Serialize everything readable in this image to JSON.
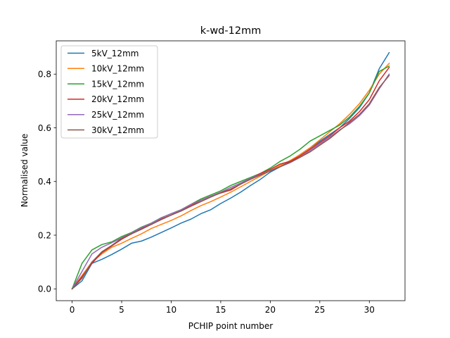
{
  "chart_data": {
    "type": "line",
    "title": "k-wd-12mm",
    "xlabel": "PCHIP point number",
    "ylabel": "Normalised value",
    "xlim": [
      -1.6,
      33.6
    ],
    "ylim": [
      -0.044,
      0.924
    ],
    "xticks": [
      0,
      5,
      10,
      15,
      20,
      25,
      30
    ],
    "yticks": [
      0.0,
      0.2,
      0.4,
      0.6,
      0.8
    ],
    "ytick_labels": [
      "0.0",
      "0.2",
      "0.4",
      "0.6",
      "0.8"
    ],
    "grid": false,
    "legend_position": "upper-left",
    "x": [
      0,
      1,
      2,
      3,
      4,
      5,
      6,
      7,
      8,
      9,
      10,
      11,
      12,
      13,
      14,
      15,
      16,
      17,
      18,
      19,
      20,
      21,
      22,
      23,
      24,
      25,
      26,
      27,
      28,
      29,
      30,
      31,
      32
    ],
    "series": [
      {
        "name": "5kV_12mm",
        "color": "#1f77b4",
        "values": [
          0.0,
          0.03,
          0.095,
          0.11,
          0.128,
          0.148,
          0.17,
          0.178,
          0.193,
          0.21,
          0.227,
          0.245,
          0.26,
          0.28,
          0.295,
          0.318,
          0.338,
          0.36,
          0.385,
          0.408,
          0.435,
          0.455,
          0.475,
          0.5,
          0.525,
          0.55,
          0.575,
          0.6,
          0.635,
          0.675,
          0.73,
          0.82,
          0.88
        ]
      },
      {
        "name": "10kV_12mm",
        "color": "#ff7f0e",
        "values": [
          0.0,
          0.05,
          0.1,
          0.13,
          0.155,
          0.17,
          0.188,
          0.205,
          0.225,
          0.24,
          0.255,
          0.272,
          0.292,
          0.31,
          0.325,
          0.342,
          0.36,
          0.38,
          0.4,
          0.42,
          0.44,
          0.46,
          0.478,
          0.5,
          0.525,
          0.555,
          0.585,
          0.615,
          0.65,
          0.69,
          0.74,
          0.8,
          0.84
        ]
      },
      {
        "name": "15kV_12mm",
        "color": "#2ca02c",
        "values": [
          0.0,
          0.095,
          0.145,
          0.165,
          0.175,
          0.195,
          0.21,
          0.23,
          0.245,
          0.265,
          0.28,
          0.295,
          0.315,
          0.335,
          0.35,
          0.365,
          0.385,
          0.4,
          0.415,
          0.43,
          0.45,
          0.475,
          0.495,
          0.52,
          0.55,
          0.57,
          0.59,
          0.61,
          0.64,
          0.68,
          0.73,
          0.81,
          0.83
        ]
      },
      {
        "name": "20kV_12mm",
        "color": "#d62728",
        "values": [
          0.0,
          0.045,
          0.095,
          0.135,
          0.16,
          0.185,
          0.205,
          0.225,
          0.24,
          0.26,
          0.275,
          0.292,
          0.31,
          0.33,
          0.345,
          0.357,
          0.368,
          0.39,
          0.41,
          0.43,
          0.445,
          0.465,
          0.475,
          0.495,
          0.52,
          0.545,
          0.57,
          0.6,
          0.625,
          0.66,
          0.705,
          0.775,
          0.825
        ]
      },
      {
        "name": "25kV_12mm",
        "color": "#9467bd",
        "values": [
          0.0,
          0.065,
          0.13,
          0.155,
          0.172,
          0.19,
          0.208,
          0.228,
          0.244,
          0.264,
          0.28,
          0.294,
          0.315,
          0.33,
          0.345,
          0.36,
          0.378,
          0.394,
          0.412,
          0.426,
          0.44,
          0.455,
          0.47,
          0.49,
          0.515,
          0.54,
          0.565,
          0.592,
          0.615,
          0.645,
          0.685,
          0.745,
          0.8
        ]
      },
      {
        "name": "30kV_12mm",
        "color": "#8c564b",
        "values": [
          0.0,
          0.04,
          0.1,
          0.138,
          0.162,
          0.188,
          0.205,
          0.222,
          0.24,
          0.258,
          0.275,
          0.29,
          0.308,
          0.325,
          0.342,
          0.358,
          0.372,
          0.39,
          0.408,
          0.424,
          0.44,
          0.455,
          0.472,
          0.49,
          0.51,
          0.535,
          0.56,
          0.59,
          0.62,
          0.65,
          0.69,
          0.75,
          0.795
        ]
      }
    ]
  }
}
